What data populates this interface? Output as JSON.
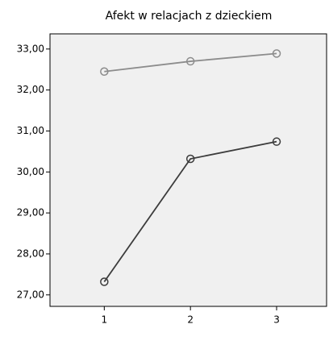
{
  "chart_data": {
    "type": "line",
    "title": "Afekt w relacjach z dzieckiem",
    "x": [
      1,
      2,
      3
    ],
    "xlim": [
      0.37,
      3.58
    ],
    "xticks": [
      1,
      2,
      3
    ],
    "ylim": [
      26.72,
      33.37
    ],
    "yticks": [
      {
        "value": 27,
        "label": "27,00"
      },
      {
        "value": 28,
        "label": "28,00"
      },
      {
        "value": 29,
        "label": "29,00"
      },
      {
        "value": 30,
        "label": "30,00"
      },
      {
        "value": 31,
        "label": "31,00"
      },
      {
        "value": 32,
        "label": "32,00"
      },
      {
        "value": 33,
        "label": "33,00"
      }
    ],
    "series": [
      {
        "color": "#8c8c8c",
        "values": [
          32.45,
          32.7,
          32.89
        ]
      },
      {
        "color": "#3c3c3c",
        "values": [
          27.32,
          30.32,
          30.74
        ]
      }
    ]
  }
}
